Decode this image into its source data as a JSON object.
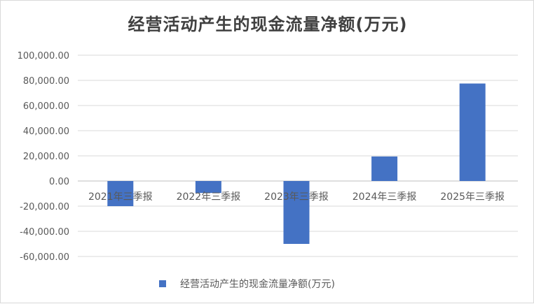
{
  "chart_data": {
    "type": "bar",
    "title": "经营活动产生的现金流量净额(万元)",
    "categories": [
      "2021年三季报",
      "2022年三季报",
      "2023年三季报",
      "2024年三季报",
      "2025年三季报"
    ],
    "series": [
      {
        "name": "经营活动产生的现金流量净额(万元)",
        "values": [
          -20000,
          -9500,
          -50000,
          19500,
          77500
        ]
      }
    ],
    "ylim": [
      -60000,
      100000
    ],
    "yticks": [
      100000,
      80000,
      60000,
      40000,
      20000,
      0,
      -20000,
      -40000,
      -60000
    ],
    "ytick_labels": [
      "100,000.00",
      "80,000.00",
      "60,000.00",
      "40,000.00",
      "20,000.00",
      "0.00",
      "-20,000.00",
      "-40,000.00",
      "-60,000.00"
    ],
    "grid": true,
    "legend_position": "bottom",
    "bar_color": "#4472c4",
    "xlabel": "",
    "ylabel": ""
  }
}
